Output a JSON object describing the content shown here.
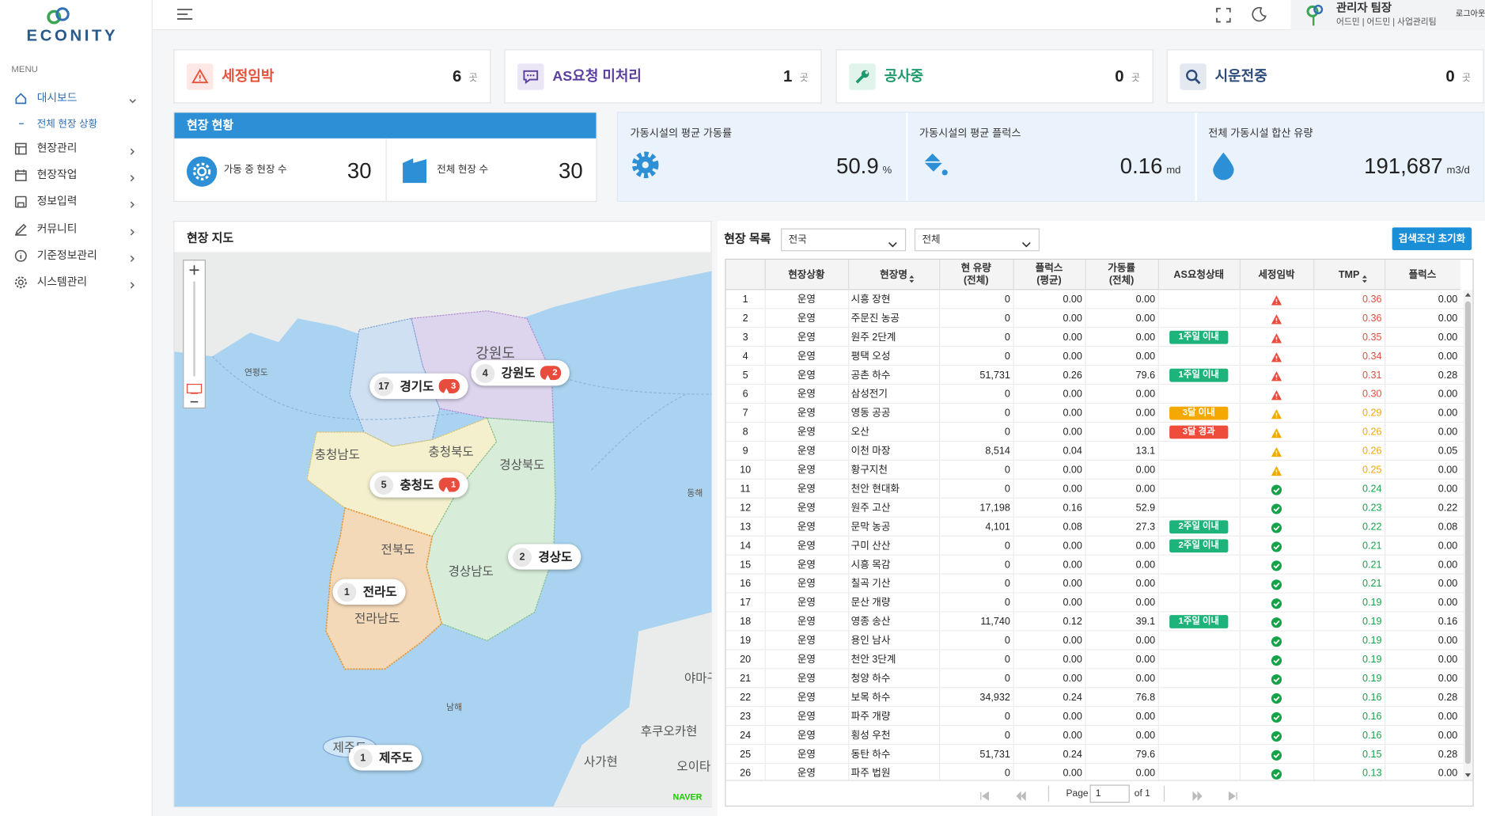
{
  "sidebar": {
    "logo": "ECONITY",
    "menu_label": "MENU",
    "menu": [
      "대시보드",
      "현장관리",
      "현장작업",
      "정보입력",
      "커뮤니티",
      "기준정보관리",
      "시스템관리"
    ],
    "submenu": [
      "전체 현장 상황"
    ]
  },
  "header": {
    "user_name": "관리자 팀장",
    "user_roles": "어드민 | 어드민 | 사업관리팀",
    "logout": "로그아웃"
  },
  "status_cards": [
    {
      "title": "세정임박",
      "value": "6",
      "unit": "곳"
    },
    {
      "title": "AS요청 미처리",
      "value": "1",
      "unit": "곳"
    },
    {
      "title": "공사중",
      "value": "0",
      "unit": "곳"
    },
    {
      "title": "시운전중",
      "value": "0",
      "unit": "곳"
    }
  ],
  "site_status": {
    "title": "현장 현황",
    "items": [
      {
        "label": "가동 중 현장 수",
        "value": "30"
      },
      {
        "label": "전체 현장 수",
        "value": "30"
      }
    ]
  },
  "metrics": [
    {
      "label": "가동시설의 평균 가동률",
      "value": "50.9",
      "unit": "%"
    },
    {
      "label": "가동시설의 평균 플럭스",
      "value": "0.16",
      "unit": "md"
    },
    {
      "label": "전체 가동시설 합산 유량",
      "value": "191,687",
      "unit": "m3/d"
    }
  ],
  "map": {
    "title": "현장 지도",
    "markers": [
      {
        "count": "17",
        "name": "경기도",
        "alert": "3"
      },
      {
        "count": "4",
        "name": "강원도",
        "alert": "2"
      },
      {
        "count": "5",
        "name": "충청도",
        "alert": "1"
      },
      {
        "count": "2",
        "name": "경상도"
      },
      {
        "count": "1",
        "name": "전라도"
      },
      {
        "count": "1",
        "name": "제주도"
      }
    ],
    "labels": [
      "강원도",
      "충청북도",
      "충청남도",
      "경상북도",
      "전북도",
      "경상남도",
      "전라남도",
      "제주도",
      "연평도",
      "동해",
      "남해",
      "야마구",
      "후쿠오카현",
      "사가현",
      "오이타"
    ],
    "attribution": "NAVER"
  },
  "site_list": {
    "title": "현장 목록",
    "filters": [
      "전국",
      "전체"
    ],
    "reset_button": "검색조건 초기화",
    "columns": [
      [
        "현장상황"
      ],
      [
        "현장명"
      ],
      [
        "현 유량",
        "(전체)"
      ],
      [
        "플럭스",
        "(평균)"
      ],
      [
        "가동률",
        "(전체)"
      ],
      [
        "AS요청상태"
      ],
      [
        "세정임박"
      ],
      [
        "TMP"
      ],
      [
        "플럭스"
      ]
    ],
    "rows": [
      [
        "1",
        "운영",
        "시흥 장현",
        "0",
        "0.00",
        "0.00",
        null,
        "#e74c3c",
        "0.36",
        "0.00"
      ],
      [
        "2",
        "운영",
        "주문진 농공",
        "0",
        "0.00",
        "0.00",
        null,
        "#e74c3c",
        "0.36",
        "0.00"
      ],
      [
        "3",
        "운영",
        "원주 2단계",
        "0",
        "0.00",
        "0.00",
        {
          "text": "1주일 이내",
          "color": "#1db37a"
        },
        "#e74c3c",
        "0.35",
        "0.00"
      ],
      [
        "4",
        "운영",
        "평택 오성",
        "0",
        "0.00",
        "0.00",
        null,
        "#e74c3c",
        "0.34",
        "0.00"
      ],
      [
        "5",
        "운영",
        "공촌 하수",
        "51,731",
        "0.26",
        "79.6",
        {
          "text": "1주일 이내",
          "color": "#1db37a"
        },
        "#e74c3c",
        "0.31",
        "0.28"
      ],
      [
        "6",
        "운영",
        "삼성전기",
        "0",
        "0.00",
        "0.00",
        null,
        "#e74c3c",
        "0.30",
        "0.00"
      ],
      [
        "7",
        "운영",
        "영동 공공",
        "0",
        "0.00",
        "0.00",
        {
          "text": "3달 이내",
          "color": "#f5a800"
        },
        "#f2a900",
        "0.29",
        "0.00"
      ],
      [
        "8",
        "운영",
        "오산",
        "0",
        "0.00",
        "0.00",
        {
          "text": "3달 경과",
          "color": "#ef4d3c"
        },
        "#f2a900",
        "0.26",
        "0.00"
      ],
      [
        "9",
        "운영",
        "이천 마장",
        "8,514",
        "0.04",
        "13.1",
        null,
        "#f2a900",
        "0.26",
        "0.05"
      ],
      [
        "10",
        "운영",
        "황구지천",
        "0",
        "0.00",
        "0.00",
        null,
        "#f2a900",
        "0.25",
        "0.00"
      ],
      [
        "11",
        "운영",
        "천안 현대화",
        "0",
        "0.00",
        "0.00",
        null,
        "#15a34a",
        "0.24",
        "0.00"
      ],
      [
        "12",
        "운영",
        "원주 고산",
        "17,198",
        "0.16",
        "52.9",
        null,
        "#15a34a",
        "0.23",
        "0.22"
      ],
      [
        "13",
        "운영",
        "문막 농공",
        "4,101",
        "0.08",
        "27.3",
        {
          "text": "2주일 이내",
          "color": "#1db37a"
        },
        "#15a34a",
        "0.22",
        "0.08"
      ],
      [
        "14",
        "운영",
        "구미 산산",
        "0",
        "0.00",
        "0.00",
        {
          "text": "2주일 이내",
          "color": "#1db37a"
        },
        "#15a34a",
        "0.21",
        "0.00"
      ],
      [
        "15",
        "운영",
        "시흥 목감",
        "0",
        "0.00",
        "0.00",
        null,
        "#15a34a",
        "0.21",
        "0.00"
      ],
      [
        "16",
        "운영",
        "칠곡 기산",
        "0",
        "0.00",
        "0.00",
        null,
        "#15a34a",
        "0.21",
        "0.00"
      ],
      [
        "17",
        "운영",
        "문산 개량",
        "0",
        "0.00",
        "0.00",
        null,
        "#15a34a",
        "0.19",
        "0.00"
      ],
      [
        "18",
        "운영",
        "영종 송산",
        "11,740",
        "0.12",
        "39.1",
        {
          "text": "1주일 이내",
          "color": "#1db37a"
        },
        "#15a34a",
        "0.19",
        "0.16"
      ],
      [
        "19",
        "운영",
        "용인 남사",
        "0",
        "0.00",
        "0.00",
        null,
        "#15a34a",
        "0.19",
        "0.00"
      ],
      [
        "20",
        "운영",
        "천안 3단계",
        "0",
        "0.00",
        "0.00",
        null,
        "#15a34a",
        "0.19",
        "0.00"
      ],
      [
        "21",
        "운영",
        "청양 하수",
        "0",
        "0.00",
        "0.00",
        null,
        "#15a34a",
        "0.19",
        "0.00"
      ],
      [
        "22",
        "운영",
        "보목 하수",
        "34,932",
        "0.24",
        "76.8",
        null,
        "#15a34a",
        "0.16",
        "0.28"
      ],
      [
        "23",
        "운영",
        "파주 개량",
        "0",
        "0.00",
        "0.00",
        null,
        "#15a34a",
        "0.16",
        "0.00"
      ],
      [
        "24",
        "운영",
        "횡성 우천",
        "0",
        "0.00",
        "0.00",
        null,
        "#15a34a",
        "0.16",
        "0.00"
      ],
      [
        "25",
        "운영",
        "동탄 하수",
        "51,731",
        "0.24",
        "79.6",
        null,
        "#15a34a",
        "0.15",
        "0.28"
      ],
      [
        "26",
        "운영",
        "파주 법원",
        "0",
        "0.00",
        "0.00",
        null,
        "#15a34a",
        "0.13",
        "0.00"
      ]
    ],
    "pagination": {
      "page_label": "Page",
      "page": "1",
      "of": "of 1"
    }
  }
}
